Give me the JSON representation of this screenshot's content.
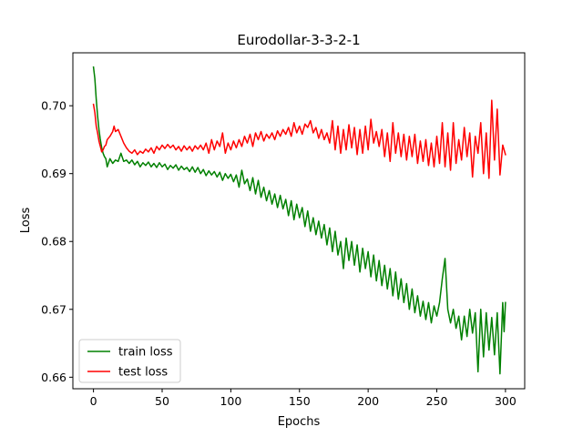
{
  "chart_data": {
    "type": "line",
    "title": "Eurodollar-3-3-2-1",
    "xlabel": "Epochs",
    "ylabel": "Loss",
    "xlim": [
      -15,
      314
    ],
    "ylim": [
      0.6583,
      0.7078
    ],
    "xticks": [
      0,
      50,
      100,
      150,
      200,
      250,
      300
    ],
    "yticks": [
      0.66,
      0.67,
      0.68,
      0.69,
      0.7
    ],
    "ytick_labels": [
      "0.66",
      "0.67",
      "0.68",
      "0.69",
      "0.70"
    ],
    "grid": false,
    "legend": "lower-left",
    "series": [
      {
        "name": "train loss",
        "color": "#008000",
        "points": [
          [
            0,
            0.7057
          ],
          [
            1,
            0.704
          ],
          [
            2,
            0.701
          ],
          [
            3,
            0.6985
          ],
          [
            4,
            0.6965
          ],
          [
            5,
            0.695
          ],
          [
            6,
            0.6938
          ],
          [
            7,
            0.693
          ],
          [
            8,
            0.6925
          ],
          [
            9,
            0.6922
          ],
          [
            10,
            0.691
          ],
          [
            12,
            0.6922
          ],
          [
            14,
            0.6915
          ],
          [
            16,
            0.692
          ],
          [
            18,
            0.6918
          ],
          [
            20,
            0.693
          ],
          [
            22,
            0.6918
          ],
          [
            24,
            0.692
          ],
          [
            26,
            0.6915
          ],
          [
            28,
            0.692
          ],
          [
            30,
            0.6913
          ],
          [
            32,
            0.6918
          ],
          [
            34,
            0.691
          ],
          [
            36,
            0.6916
          ],
          [
            38,
            0.6912
          ],
          [
            40,
            0.6917
          ],
          [
            42,
            0.691
          ],
          [
            44,
            0.6915
          ],
          [
            46,
            0.6909
          ],
          [
            48,
            0.6916
          ],
          [
            50,
            0.691
          ],
          [
            52,
            0.6914
          ],
          [
            54,
            0.6906
          ],
          [
            56,
            0.6912
          ],
          [
            58,
            0.6908
          ],
          [
            60,
            0.6913
          ],
          [
            62,
            0.6905
          ],
          [
            64,
            0.6911
          ],
          [
            66,
            0.6906
          ],
          [
            68,
            0.6909
          ],
          [
            70,
            0.6903
          ],
          [
            72,
            0.691
          ],
          [
            74,
            0.6902
          ],
          [
            76,
            0.6909
          ],
          [
            78,
            0.69
          ],
          [
            80,
            0.6906
          ],
          [
            82,
            0.6897
          ],
          [
            84,
            0.6904
          ],
          [
            86,
            0.6898
          ],
          [
            88,
            0.6903
          ],
          [
            90,
            0.6895
          ],
          [
            92,
            0.6902
          ],
          [
            94,
            0.689
          ],
          [
            96,
            0.69
          ],
          [
            98,
            0.6893
          ],
          [
            100,
            0.6899
          ],
          [
            102,
            0.6888
          ],
          [
            104,
            0.6898
          ],
          [
            106,
            0.688
          ],
          [
            108,
            0.6905
          ],
          [
            110,
            0.6885
          ],
          [
            112,
            0.6892
          ],
          [
            114,
            0.6875
          ],
          [
            116,
            0.6894
          ],
          [
            118,
            0.687
          ],
          [
            120,
            0.689
          ],
          [
            122,
            0.6865
          ],
          [
            124,
            0.688
          ],
          [
            126,
            0.686
          ],
          [
            128,
            0.6875
          ],
          [
            130,
            0.6855
          ],
          [
            132,
            0.687
          ],
          [
            134,
            0.685
          ],
          [
            136,
            0.6868
          ],
          [
            138,
            0.6848
          ],
          [
            140,
            0.6862
          ],
          [
            142,
            0.6838
          ],
          [
            144,
            0.686
          ],
          [
            146,
            0.6832
          ],
          [
            148,
            0.6855
          ],
          [
            150,
            0.6835
          ],
          [
            152,
            0.685
          ],
          [
            154,
            0.6822
          ],
          [
            156,
            0.6845
          ],
          [
            158,
            0.6815
          ],
          [
            160,
            0.6835
          ],
          [
            162,
            0.681
          ],
          [
            164,
            0.683
          ],
          [
            166,
            0.6805
          ],
          [
            168,
            0.6825
          ],
          [
            170,
            0.6795
          ],
          [
            172,
            0.682
          ],
          [
            174,
            0.6785
          ],
          [
            176,
            0.6815
          ],
          [
            178,
            0.678
          ],
          [
            180,
            0.68
          ],
          [
            182,
            0.676
          ],
          [
            184,
            0.6805
          ],
          [
            186,
            0.6772
          ],
          [
            188,
            0.68
          ],
          [
            190,
            0.6765
          ],
          [
            192,
            0.6795
          ],
          [
            194,
            0.6755
          ],
          [
            196,
            0.679
          ],
          [
            198,
            0.676
          ],
          [
            200,
            0.6785
          ],
          [
            202,
            0.6748
          ],
          [
            204,
            0.678
          ],
          [
            206,
            0.6742
          ],
          [
            208,
            0.6772
          ],
          [
            210,
            0.6735
          ],
          [
            212,
            0.6765
          ],
          [
            214,
            0.673
          ],
          [
            216,
            0.676
          ],
          [
            218,
            0.672
          ],
          [
            220,
            0.6755
          ],
          [
            222,
            0.6715
          ],
          [
            224,
            0.6745
          ],
          [
            226,
            0.671
          ],
          [
            228,
            0.6738
          ],
          [
            230,
            0.67
          ],
          [
            232,
            0.673
          ],
          [
            234,
            0.6695
          ],
          [
            236,
            0.672
          ],
          [
            238,
            0.669
          ],
          [
            240,
            0.6712
          ],
          [
            242,
            0.6685
          ],
          [
            244,
            0.671
          ],
          [
            246,
            0.668
          ],
          [
            248,
            0.6705
          ],
          [
            250,
            0.669
          ],
          [
            252,
            0.671
          ],
          [
            254,
            0.6745
          ],
          [
            256,
            0.6775
          ],
          [
            258,
            0.67
          ],
          [
            260,
            0.668
          ],
          [
            262,
            0.67
          ],
          [
            264,
            0.6672
          ],
          [
            266,
            0.669
          ],
          [
            268,
            0.6655
          ],
          [
            270,
            0.669
          ],
          [
            272,
            0.666
          ],
          [
            274,
            0.67
          ],
          [
            276,
            0.6665
          ],
          [
            278,
            0.6695
          ],
          [
            280,
            0.6608
          ],
          [
            282,
            0.67
          ],
          [
            284,
            0.663
          ],
          [
            286,
            0.6695
          ],
          [
            288,
            0.664
          ],
          [
            290,
            0.6688
          ],
          [
            292,
            0.6633
          ],
          [
            294,
            0.6695
          ],
          [
            296,
            0.6605
          ],
          [
            298,
            0.671
          ],
          [
            299,
            0.6667
          ],
          [
            300,
            0.671
          ]
        ]
      },
      {
        "name": "test loss",
        "color": "#ff0000",
        "points": [
          [
            0,
            0.7002
          ],
          [
            1,
            0.699
          ],
          [
            2,
            0.697
          ],
          [
            3,
            0.696
          ],
          [
            4,
            0.6948
          ],
          [
            5,
            0.694
          ],
          [
            6,
            0.6932
          ],
          [
            7,
            0.6935
          ],
          [
            8,
            0.694
          ],
          [
            9,
            0.6942
          ],
          [
            10,
            0.695
          ],
          [
            12,
            0.6955
          ],
          [
            14,
            0.6962
          ],
          [
            15,
            0.697
          ],
          [
            16,
            0.6962
          ],
          [
            18,
            0.6965
          ],
          [
            20,
            0.6955
          ],
          [
            22,
            0.6945
          ],
          [
            24,
            0.6938
          ],
          [
            26,
            0.6933
          ],
          [
            28,
            0.693
          ],
          [
            30,
            0.6935
          ],
          [
            32,
            0.6928
          ],
          [
            34,
            0.6933
          ],
          [
            36,
            0.693
          ],
          [
            38,
            0.6936
          ],
          [
            40,
            0.6932
          ],
          [
            42,
            0.6938
          ],
          [
            44,
            0.693
          ],
          [
            46,
            0.694
          ],
          [
            48,
            0.6935
          ],
          [
            50,
            0.6942
          ],
          [
            52,
            0.6937
          ],
          [
            54,
            0.6943
          ],
          [
            56,
            0.6938
          ],
          [
            58,
            0.6942
          ],
          [
            60,
            0.6935
          ],
          [
            62,
            0.694
          ],
          [
            64,
            0.6933
          ],
          [
            66,
            0.6941
          ],
          [
            68,
            0.6935
          ],
          [
            70,
            0.694
          ],
          [
            72,
            0.6933
          ],
          [
            74,
            0.6941
          ],
          [
            76,
            0.6936
          ],
          [
            78,
            0.6942
          ],
          [
            80,
            0.6935
          ],
          [
            82,
            0.6945
          ],
          [
            84,
            0.693
          ],
          [
            86,
            0.695
          ],
          [
            88,
            0.6935
          ],
          [
            90,
            0.6948
          ],
          [
            92,
            0.694
          ],
          [
            94,
            0.696
          ],
          [
            96,
            0.693
          ],
          [
            98,
            0.6945
          ],
          [
            100,
            0.6935
          ],
          [
            102,
            0.6948
          ],
          [
            104,
            0.6938
          ],
          [
            106,
            0.695
          ],
          [
            108,
            0.694
          ],
          [
            110,
            0.6955
          ],
          [
            112,
            0.6945
          ],
          [
            114,
            0.6958
          ],
          [
            116,
            0.694
          ],
          [
            118,
            0.696
          ],
          [
            120,
            0.695
          ],
          [
            122,
            0.6962
          ],
          [
            124,
            0.6948
          ],
          [
            126,
            0.6958
          ],
          [
            128,
            0.6952
          ],
          [
            130,
            0.696
          ],
          [
            132,
            0.695
          ],
          [
            134,
            0.6963
          ],
          [
            136,
            0.6955
          ],
          [
            138,
            0.6965
          ],
          [
            140,
            0.6958
          ],
          [
            142,
            0.6968
          ],
          [
            144,
            0.6955
          ],
          [
            146,
            0.6975
          ],
          [
            148,
            0.696
          ],
          [
            150,
            0.697
          ],
          [
            152,
            0.6958
          ],
          [
            154,
            0.6973
          ],
          [
            156,
            0.6968
          ],
          [
            158,
            0.6978
          ],
          [
            160,
            0.696
          ],
          [
            162,
            0.6968
          ],
          [
            164,
            0.6952
          ],
          [
            166,
            0.6965
          ],
          [
            168,
            0.695
          ],
          [
            170,
            0.696
          ],
          [
            172,
            0.6945
          ],
          [
            174,
            0.6978
          ],
          [
            176,
            0.6935
          ],
          [
            178,
            0.697
          ],
          [
            180,
            0.693
          ],
          [
            182,
            0.6965
          ],
          [
            184,
            0.6935
          ],
          [
            186,
            0.6972
          ],
          [
            188,
            0.6938
          ],
          [
            190,
            0.6968
          ],
          [
            192,
            0.6928
          ],
          [
            194,
            0.6965
          ],
          [
            196,
            0.693
          ],
          [
            198,
            0.697
          ],
          [
            200,
            0.6935
          ],
          [
            202,
            0.698
          ],
          [
            204,
            0.6945
          ],
          [
            206,
            0.6962
          ],
          [
            208,
            0.694
          ],
          [
            210,
            0.6965
          ],
          [
            212,
            0.6925
          ],
          [
            214,
            0.696
          ],
          [
            216,
            0.6918
          ],
          [
            218,
            0.6975
          ],
          [
            220,
            0.693
          ],
          [
            222,
            0.696
          ],
          [
            224,
            0.6925
          ],
          [
            226,
            0.6958
          ],
          [
            228,
            0.692
          ],
          [
            230,
            0.6955
          ],
          [
            232,
            0.6925
          ],
          [
            234,
            0.6958
          ],
          [
            236,
            0.6915
          ],
          [
            238,
            0.6948
          ],
          [
            240,
            0.6918
          ],
          [
            242,
            0.695
          ],
          [
            244,
            0.6912
          ],
          [
            246,
            0.6945
          ],
          [
            248,
            0.691
          ],
          [
            250,
            0.6955
          ],
          [
            252,
            0.6915
          ],
          [
            254,
            0.6975
          ],
          [
            256,
            0.691
          ],
          [
            258,
            0.696
          ],
          [
            260,
            0.6905
          ],
          [
            262,
            0.6975
          ],
          [
            264,
            0.6915
          ],
          [
            266,
            0.695
          ],
          [
            268,
            0.692
          ],
          [
            270,
            0.6968
          ],
          [
            272,
            0.6925
          ],
          [
            274,
            0.696
          ],
          [
            276,
            0.6895
          ],
          [
            278,
            0.6955
          ],
          [
            280,
            0.693
          ],
          [
            282,
            0.6975
          ],
          [
            284,
            0.69
          ],
          [
            286,
            0.696
          ],
          [
            288,
            0.6893
          ],
          [
            290,
            0.7008
          ],
          [
            292,
            0.692
          ],
          [
            294,
            0.6995
          ],
          [
            296,
            0.6898
          ],
          [
            298,
            0.6942
          ],
          [
            300,
            0.6928
          ]
        ]
      }
    ]
  }
}
